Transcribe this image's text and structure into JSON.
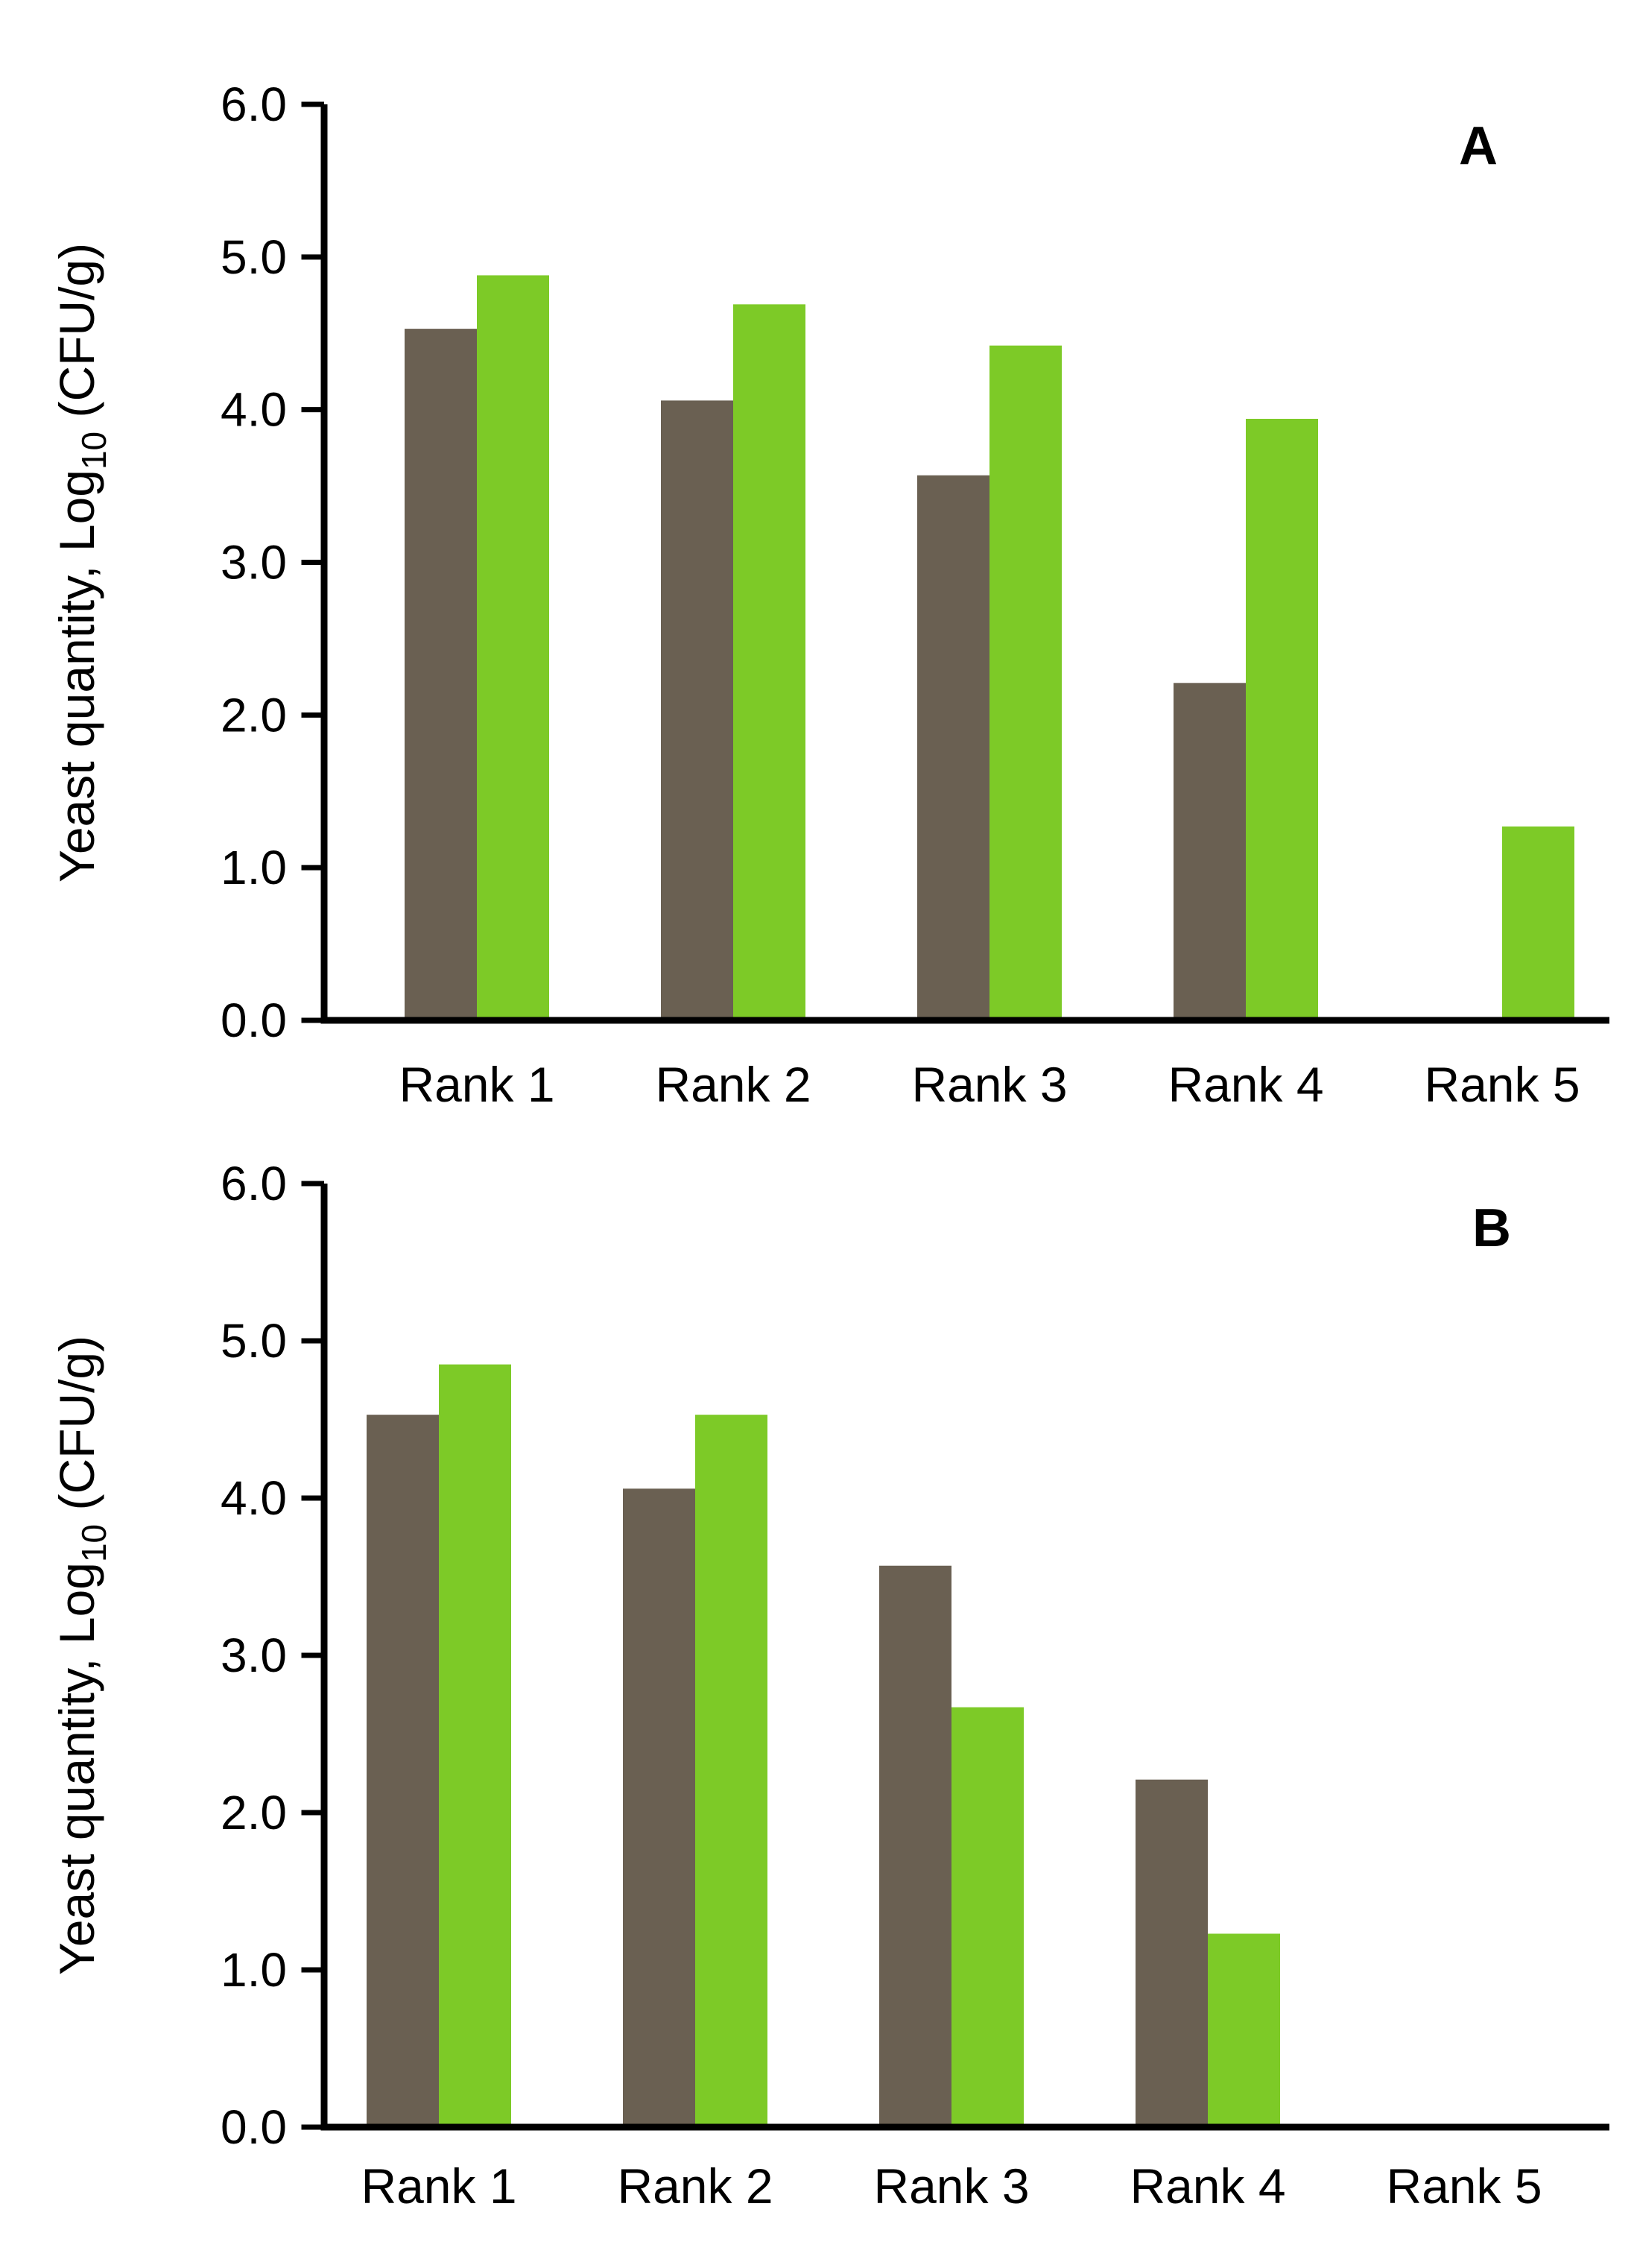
{
  "colors": {
    "brown": "#6a6052",
    "green": "#7dca27",
    "axis": "#000000"
  },
  "chart_data": [
    {
      "type": "bar",
      "panel_label": "A",
      "title": "",
      "xlabel": "",
      "ylabel": "Yeast quantity, Log10 (CFU/g)",
      "ylabel_parts": {
        "main": "Yeast quantity, Log",
        "sub": "10",
        "rest": " (CFU/g)"
      },
      "ylim": [
        0,
        6
      ],
      "ytick_labels": [
        "6.0",
        "5.0",
        "4.0",
        "3.0",
        "2.0",
        "1.0",
        "0.0"
      ],
      "categories": [
        "Rank 1",
        "Rank 2",
        "Rank 3",
        "Rank 4",
        "Rank 5"
      ],
      "series": [
        {
          "name": "brown-bars",
          "color_key": "brown",
          "values": [
            4.53,
            4.06,
            3.57,
            2.21,
            0
          ]
        },
        {
          "name": "green-bars",
          "color_key": "green",
          "values": [
            4.88,
            4.69,
            4.42,
            3.94,
            1.27
          ]
        }
      ],
      "grid": false,
      "legend": "none"
    },
    {
      "type": "bar",
      "panel_label": "B",
      "title": "",
      "xlabel": "",
      "ylabel": "Yeast quantity, Log10 (CFU/g)",
      "ylabel_parts": {
        "main": "Yeast quantity, Log",
        "sub": "10",
        "rest": " (CFU/g)"
      },
      "ylim": [
        0,
        6
      ],
      "ytick_labels": [
        "6.0",
        "5.0",
        "4.0",
        "3.0",
        "2.0",
        "1.0",
        "0.0"
      ],
      "categories": [
        "Rank 1",
        "Rank 2",
        "Rank 3",
        "Rank 4",
        "Rank 5"
      ],
      "series": [
        {
          "name": "brown-bars",
          "color_key": "brown",
          "values": [
            4.53,
            4.06,
            3.57,
            2.21,
            0
          ]
        },
        {
          "name": "green-bars",
          "color_key": "green",
          "values": [
            4.85,
            4.53,
            2.67,
            1.23,
            0
          ]
        }
      ],
      "grid": false,
      "legend": "none"
    }
  ]
}
